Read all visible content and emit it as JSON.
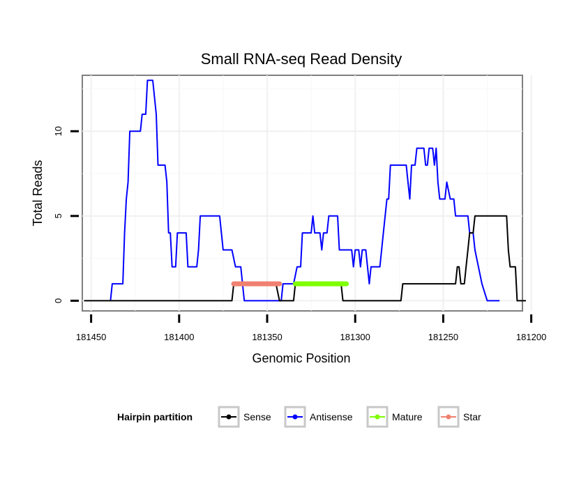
{
  "chart_data": {
    "type": "line",
    "title": "Small RNA-seq Read Density",
    "xlabel": "Genomic Position",
    "ylabel": "Total Reads",
    "xlim": [
      181455,
      181205
    ],
    "ylim": [
      -0.6,
      13.3
    ],
    "x_ticks": [
      181450,
      181400,
      181350,
      181300,
      181250,
      181200
    ],
    "x_tick_labels": [
      "181450",
      "181400",
      "181350",
      "181300",
      "181250",
      "181200"
    ],
    "y_ticks": [
      0,
      5,
      10
    ],
    "y_tick_labels": [
      "0",
      "5",
      "10"
    ],
    "grid": true,
    "legend": {
      "title": "Hairpin partition",
      "position": "bottom",
      "entries": [
        "Sense",
        "Antisense",
        "Mature",
        "Star"
      ]
    },
    "series": [
      {
        "name": "Sense",
        "color": "#000000",
        "points": [
          [
            181454,
            0
          ],
          [
            181370,
            0
          ],
          [
            181369,
            1
          ],
          [
            181345,
            1
          ],
          [
            181343,
            0
          ],
          [
            181335,
            0
          ],
          [
            181334,
            1
          ],
          [
            181308,
            1
          ],
          [
            181307,
            0
          ],
          [
            181274,
            0
          ],
          [
            181273,
            1
          ],
          [
            181243,
            1
          ],
          [
            181242,
            2
          ],
          [
            181241,
            2
          ],
          [
            181240,
            1
          ],
          [
            181238,
            1
          ],
          [
            181237,
            2
          ],
          [
            181236,
            3
          ],
          [
            181235,
            4
          ],
          [
            181233,
            4
          ],
          [
            181232,
            5
          ],
          [
            181214,
            5
          ],
          [
            181213,
            3
          ],
          [
            181212,
            2
          ],
          [
            181209,
            2
          ],
          [
            181208,
            0
          ],
          [
            181203,
            0
          ]
        ]
      },
      {
        "name": "Antisense",
        "color": "#0000ff",
        "points": [
          [
            181439,
            0
          ],
          [
            181438,
            1
          ],
          [
            181432,
            1
          ],
          [
            181431,
            4
          ],
          [
            181430,
            6
          ],
          [
            181429,
            7
          ],
          [
            181428,
            10
          ],
          [
            181422,
            10
          ],
          [
            181421,
            11
          ],
          [
            181419,
            11
          ],
          [
            181418,
            13
          ],
          [
            181415,
            13
          ],
          [
            181413,
            11
          ],
          [
            181412,
            8
          ],
          [
            181408,
            8
          ],
          [
            181407,
            7
          ],
          [
            181406,
            4
          ],
          [
            181405,
            4
          ],
          [
            181404,
            2
          ],
          [
            181402,
            2
          ],
          [
            181401,
            4
          ],
          [
            181396,
            4
          ],
          [
            181395,
            2
          ],
          [
            181390,
            2
          ],
          [
            181389,
            3
          ],
          [
            181388,
            5
          ],
          [
            181377,
            5
          ],
          [
            181375,
            3
          ],
          [
            181370,
            3
          ],
          [
            181368,
            2
          ],
          [
            181365,
            2
          ],
          [
            181363,
            0
          ],
          [
            181342,
            0
          ],
          [
            181341,
            1
          ],
          [
            181335,
            1
          ],
          [
            181333,
            2
          ],
          [
            181331,
            2
          ],
          [
            181330,
            4
          ],
          [
            181325,
            4
          ],
          [
            181324,
            5
          ],
          [
            181323,
            4
          ],
          [
            181320,
            4
          ],
          [
            181319,
            3
          ],
          [
            181318,
            4
          ],
          [
            181316,
            4
          ],
          [
            181315,
            5
          ],
          [
            181310,
            5
          ],
          [
            181309,
            3
          ],
          [
            181302,
            3
          ],
          [
            181301,
            2
          ],
          [
            181300,
            3
          ],
          [
            181298,
            3
          ],
          [
            181297,
            2
          ],
          [
            181296,
            3
          ],
          [
            181294,
            3
          ],
          [
            181293,
            2
          ],
          [
            181292,
            1
          ],
          [
            181291,
            2
          ],
          [
            181286,
            2
          ],
          [
            181284,
            4
          ],
          [
            181282,
            6
          ],
          [
            181281,
            6
          ],
          [
            181280,
            8
          ],
          [
            181271,
            8
          ],
          [
            181270,
            7
          ],
          [
            181269,
            6
          ],
          [
            181268,
            8
          ],
          [
            181266,
            8
          ],
          [
            181265,
            9
          ],
          [
            181261,
            9
          ],
          [
            181260,
            8
          ],
          [
            181259,
            8
          ],
          [
            181258,
            9
          ],
          [
            181256,
            9
          ],
          [
            181255,
            8
          ],
          [
            181254,
            9
          ],
          [
            181253,
            7
          ],
          [
            181252,
            6
          ],
          [
            181249,
            6
          ],
          [
            181248,
            7
          ],
          [
            181246,
            6
          ],
          [
            181244,
            6
          ],
          [
            181243,
            5
          ],
          [
            181236,
            5
          ],
          [
            181235,
            4
          ],
          [
            181233,
            4
          ],
          [
            181232,
            3
          ],
          [
            181230,
            2
          ],
          [
            181228,
            1
          ],
          [
            181225,
            0
          ],
          [
            181218,
            0
          ]
        ]
      },
      {
        "name": "Mature",
        "color": "#7fff00",
        "segments": [
          [
            181334,
            181305
          ]
        ],
        "value": 1
      },
      {
        "name": "Star",
        "color": "#f08070",
        "segments": [
          [
            181369,
            181343
          ]
        ],
        "value": 1
      }
    ]
  }
}
